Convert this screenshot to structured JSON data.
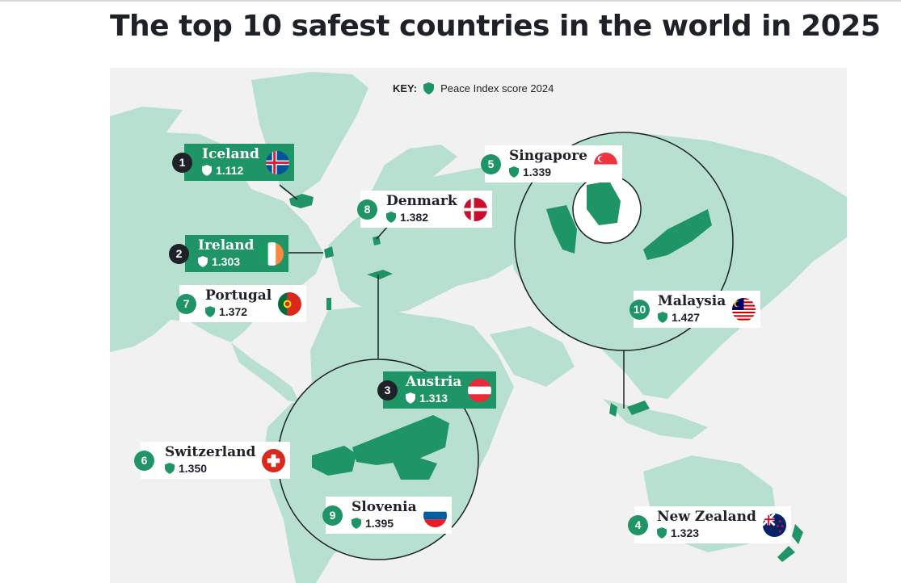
{
  "page": {
    "title": "The top 10 safest countries in the world in 2025"
  },
  "key": {
    "label": "KEY:",
    "text": "Peace Index score 2024",
    "icon": "shield-icon"
  },
  "colors": {
    "land": "#b8e0d0",
    "highlight": "#1f9467",
    "water": "#f1f1f1",
    "dark_badge": "#1e2127"
  },
  "countries": [
    {
      "rank": "1",
      "name": "Iceland",
      "score": "1.112",
      "flag": "iceland-flag"
    },
    {
      "rank": "2",
      "name": "Ireland",
      "score": "1.303",
      "flag": "ireland-flag"
    },
    {
      "rank": "3",
      "name": "Austria",
      "score": "1.313",
      "flag": "austria-flag"
    },
    {
      "rank": "4",
      "name": "New Zealand",
      "score": "1.323",
      "flag": "new-zealand-flag"
    },
    {
      "rank": "5",
      "name": "Singapore",
      "score": "1.339",
      "flag": "singapore-flag"
    },
    {
      "rank": "6",
      "name": "Switzerland",
      "score": "1.350",
      "flag": "switzerland-flag"
    },
    {
      "rank": "7",
      "name": "Portugal",
      "score": "1.372",
      "flag": "portugal-flag"
    },
    {
      "rank": "8",
      "name": "Denmark",
      "score": "1.382",
      "flag": "denmark-flag"
    },
    {
      "rank": "9",
      "name": "Slovenia",
      "score": "1.395",
      "flag": "slovenia-flag"
    },
    {
      "rank": "10",
      "name": "Malaysia",
      "score": "1.427",
      "flag": "malaysia-flag"
    }
  ]
}
